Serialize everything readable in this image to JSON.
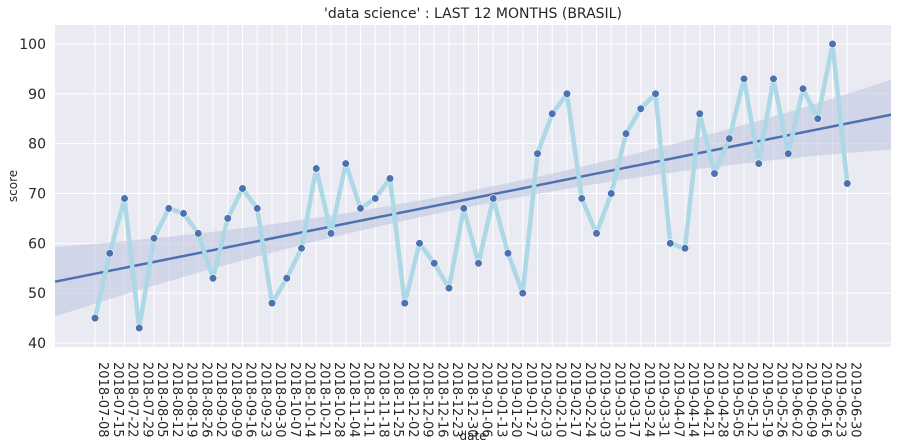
{
  "chart_data": {
    "type": "scatter",
    "title": "'data science' : LAST 12 MONTHS (BRASIL)",
    "xlabel": "date",
    "ylabel": "score",
    "ylim": [
      39.2,
      103.8
    ],
    "y_ticks": [
      40,
      50,
      60,
      70,
      80,
      90,
      100
    ],
    "grid": true,
    "categories": [
      "2018-07-08",
      "2018-07-15",
      "2018-07-22",
      "2018-07-29",
      "2018-08-05",
      "2018-08-12",
      "2018-08-19",
      "2018-08-26",
      "2018-09-02",
      "2018-09-09",
      "2018-09-16",
      "2018-09-23",
      "2018-09-30",
      "2018-10-07",
      "2018-10-14",
      "2018-10-21",
      "2018-10-28",
      "2018-11-04",
      "2018-11-11",
      "2018-11-18",
      "2018-11-25",
      "2018-12-02",
      "2018-12-09",
      "2018-12-16",
      "2018-12-23",
      "2018-12-30",
      "2019-01-06",
      "2019-01-13",
      "2019-01-20",
      "2019-01-27",
      "2019-02-03",
      "2019-02-10",
      "2019-02-17",
      "2019-02-24",
      "2019-03-03",
      "2019-03-10",
      "2019-03-17",
      "2019-03-24",
      "2019-03-31",
      "2019-04-07",
      "2019-04-14",
      "2019-04-21",
      "2019-04-28",
      "2019-05-05",
      "2019-05-12",
      "2019-05-19",
      "2019-05-26",
      "2019-06-02",
      "2019-06-09",
      "2019-06-16",
      "2019-06-23",
      "2019-06-30"
    ],
    "values": [
      45,
      58,
      69,
      43,
      61,
      67,
      66,
      62,
      53,
      65,
      71,
      67,
      48,
      53,
      59,
      75,
      62,
      76,
      67,
      69,
      73,
      48,
      60,
      56,
      51,
      67,
      56,
      69,
      58,
      50,
      78,
      86,
      90,
      69,
      62,
      70,
      82,
      87,
      90,
      60,
      59,
      86,
      74,
      81,
      93,
      76,
      93,
      78,
      91,
      85,
      100,
      72
    ],
    "trend": {
      "start": 52.3,
      "end": 85.8
    },
    "colors": {
      "background": "#eaeaf2",
      "grid": "#ffffff",
      "line": "#add8e6",
      "points": "#4c72b0",
      "trend": "#4c72b0",
      "band": "#b9c3df"
    }
  }
}
